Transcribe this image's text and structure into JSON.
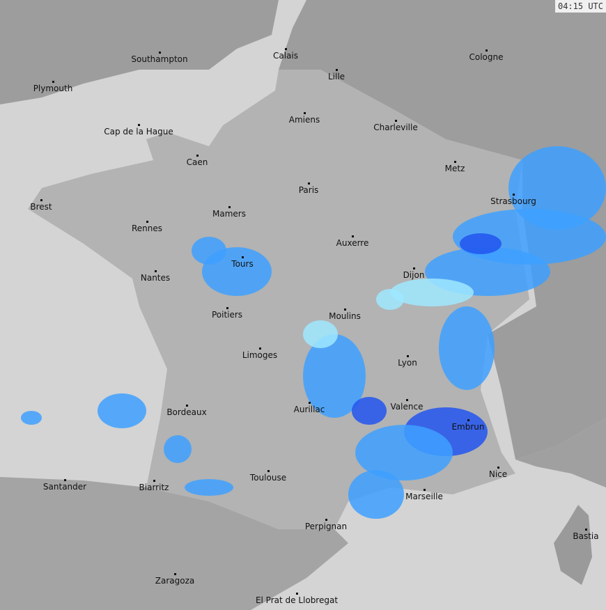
{
  "timestamp": "04:15 UTC",
  "colors": {
    "sea": "#d4d4d4",
    "france": "#b3b3b3",
    "neighbors": "#9d9d9d",
    "rain_light": "#9fe8ff",
    "rain_mid": "#3ea0ff",
    "rain_heavy": "#2255ee",
    "rain_extreme": "#cc33ff",
    "rivers": "#ffffff"
  },
  "cities": [
    {
      "name": "Southampton"
    },
    {
      "name": "Plymouth"
    },
    {
      "name": "Calais"
    },
    {
      "name": "Lille"
    },
    {
      "name": "Cologne"
    },
    {
      "name": "Amiens"
    },
    {
      "name": "Charleville"
    },
    {
      "name": "Cap de la Hague"
    },
    {
      "name": "Caen"
    },
    {
      "name": "Metz"
    },
    {
      "name": "Paris"
    },
    {
      "name": "Strasbourg"
    },
    {
      "name": "Brest"
    },
    {
      "name": "Mamers"
    },
    {
      "name": "Rennes"
    },
    {
      "name": "Auxerre"
    },
    {
      "name": "Tours"
    },
    {
      "name": "Nantes"
    },
    {
      "name": "Dijon"
    },
    {
      "name": "Poitiers"
    },
    {
      "name": "Moulins"
    },
    {
      "name": "Limoges"
    },
    {
      "name": "Lyon"
    },
    {
      "name": "Aurillac"
    },
    {
      "name": "Valence"
    },
    {
      "name": "Bordeaux"
    },
    {
      "name": "Embrun"
    },
    {
      "name": "Nice"
    },
    {
      "name": "Toulouse"
    },
    {
      "name": "Santander"
    },
    {
      "name": "Biarritz"
    },
    {
      "name": "Marseille"
    },
    {
      "name": "Perpignan"
    },
    {
      "name": "Bastia"
    },
    {
      "name": "Zaragoza"
    },
    {
      "name": "El Prat de Llobregat"
    }
  ]
}
